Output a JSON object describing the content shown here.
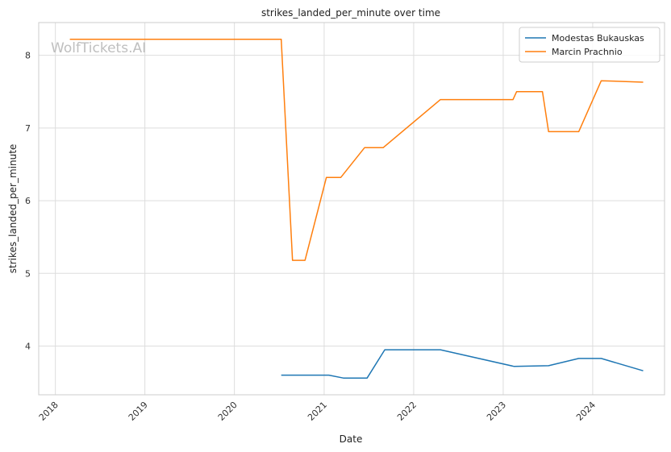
{
  "chart_data": {
    "type": "line",
    "title": "strikes_landed_per_minute over time",
    "xlabel": "Date",
    "ylabel": "strikes_landed_per_minute",
    "watermark": "WolfTickets.AI",
    "x_ticks": [
      "2018",
      "2019",
      "2020",
      "2021",
      "2022",
      "2023",
      "2024"
    ],
    "y_ticks": [
      "4",
      "5",
      "6",
      "7",
      "8"
    ],
    "xlim": [
      "2017-10-25",
      "2024-10-20"
    ],
    "ylim": [
      3.33,
      8.45
    ],
    "grid": true,
    "legend_position": "top-right",
    "series": [
      {
        "name": "Modestas Bukauskas",
        "color": "#1f77b4",
        "points": [
          [
            "2020-07-10",
            3.6
          ],
          [
            "2021-01-20",
            3.6
          ],
          [
            "2021-03-20",
            3.56
          ],
          [
            "2021-06-25",
            3.56
          ],
          [
            "2021-09-05",
            3.95
          ],
          [
            "2022-04-20",
            3.95
          ],
          [
            "2023-02-15",
            3.72
          ],
          [
            "2023-07-05",
            3.73
          ],
          [
            "2023-11-05",
            3.83
          ],
          [
            "2024-02-05",
            3.83
          ],
          [
            "2024-07-25",
            3.66
          ]
        ]
      },
      {
        "name": "Marcin Prachnio",
        "color": "#ff7f0e",
        "points": [
          [
            "2018-03-01",
            8.22
          ],
          [
            "2020-07-10",
            8.22
          ],
          [
            "2020-08-25",
            5.18
          ],
          [
            "2020-10-15",
            5.18
          ],
          [
            "2021-01-10",
            6.32
          ],
          [
            "2021-03-10",
            6.32
          ],
          [
            "2021-06-15",
            6.73
          ],
          [
            "2021-08-30",
            6.73
          ],
          [
            "2022-04-20",
            7.39
          ],
          [
            "2023-02-10",
            7.39
          ],
          [
            "2023-02-25",
            7.5
          ],
          [
            "2023-06-10",
            7.5
          ],
          [
            "2023-07-05",
            6.95
          ],
          [
            "2023-11-05",
            6.95
          ],
          [
            "2024-02-05",
            7.65
          ],
          [
            "2024-07-25",
            7.63
          ]
        ]
      }
    ]
  }
}
